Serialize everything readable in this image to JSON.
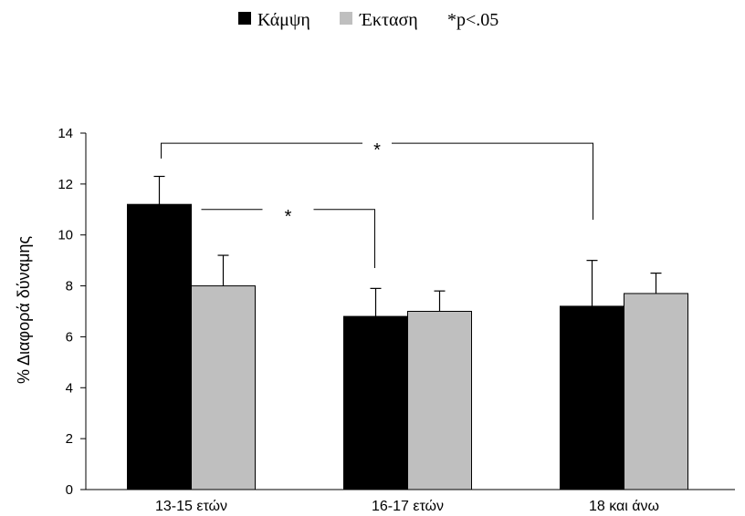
{
  "chart_data": {
    "type": "bar",
    "categories": [
      "13-15 ετών",
      "16-17 ετών",
      "18 και άνω"
    ],
    "series": [
      {
        "name": "Κάμψη",
        "color": "#000000",
        "values": [
          11.2,
          6.8,
          7.2
        ],
        "errors": [
          1.1,
          1.1,
          1.8
        ]
      },
      {
        "name": "Έκταση",
        "color": "#bfbfbf",
        "values": [
          8.0,
          7.0,
          7.7
        ],
        "errors": [
          1.2,
          0.8,
          0.8
        ]
      }
    ],
    "ylabel": "% Διαφορά δύναμης",
    "ylim": [
      0,
      14
    ],
    "yticks": [
      0,
      2,
      4,
      6,
      8,
      10,
      12,
      14
    ],
    "significance_note": "*p<.05",
    "significance_brackets": [
      {
        "from": 0,
        "to": 2,
        "label": "*"
      },
      {
        "from": 0,
        "to": 1,
        "label": "*"
      }
    ],
    "grid": false,
    "legend_position": "top-center"
  }
}
